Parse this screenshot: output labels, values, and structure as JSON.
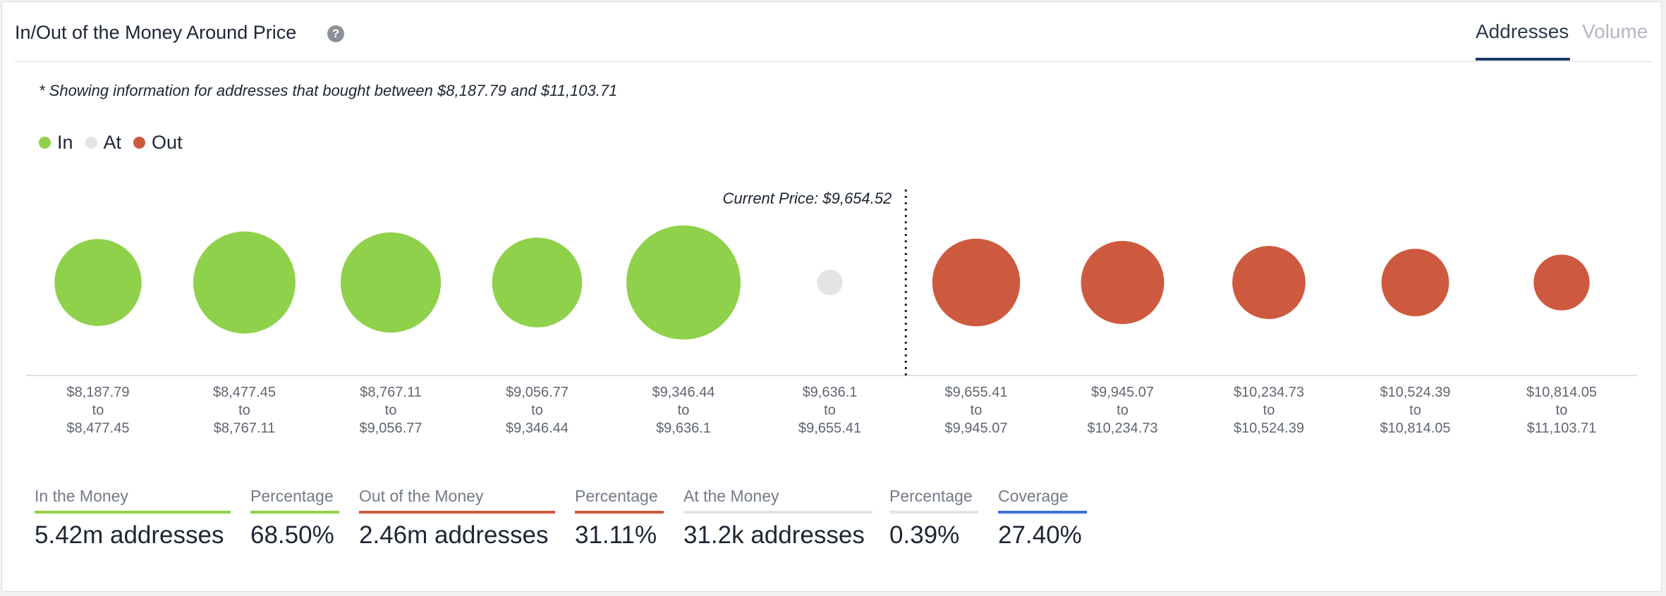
{
  "header": {
    "title": "In/Out of the Money Around Price",
    "help_icon": "question-circle-icon",
    "tabs": [
      {
        "label": "Addresses",
        "active": true
      },
      {
        "label": "Volume",
        "active": false
      }
    ]
  },
  "note": "* Showing information for addresses that bought between $8,187.79 and $11,103.71",
  "colors": {
    "in": "#8fd14a",
    "at": "#e4e4e4",
    "out": "#cd5a3f",
    "coverage": "#3f6fd8"
  },
  "legend": [
    {
      "label": "In",
      "color": "#8fd14a"
    },
    {
      "label": "At",
      "color": "#e4e4e4"
    },
    {
      "label": "Out",
      "color": "#cd5a3f"
    }
  ],
  "chart_data": {
    "type": "scatter",
    "encoding": "bubble area proportional to number of addresses in each price range",
    "current_price_label": "Current Price: $9,654.52",
    "current_price": 9654.52,
    "buckets": [
      {
        "from": "$8,187.79",
        "to": "$8,477.45",
        "status": "in",
        "relative_size": 0.58
      },
      {
        "from": "$8,477.45",
        "to": "$8,767.11",
        "status": "in",
        "relative_size": 0.8
      },
      {
        "from": "$8,767.11",
        "to": "$9,056.77",
        "status": "in",
        "relative_size": 0.77
      },
      {
        "from": "$9,056.77",
        "to": "$9,346.44",
        "status": "in",
        "relative_size": 0.62
      },
      {
        "from": "$9,346.44",
        "to": "$9,636.1",
        "status": "in",
        "relative_size": 1.0
      },
      {
        "from": "$9,636.1",
        "to": "$9,655.41",
        "status": "at",
        "relative_size": 0.05
      },
      {
        "from": "$9,655.41",
        "to": "$9,945.07",
        "status": "out",
        "relative_size": 0.59
      },
      {
        "from": "$9,945.07",
        "to": "$10,234.73",
        "status": "out",
        "relative_size": 0.53
      },
      {
        "from": "$10,234.73",
        "to": "$10,524.39",
        "status": "out",
        "relative_size": 0.41
      },
      {
        "from": "$10,524.39",
        "to": "$10,814.05",
        "status": "out",
        "relative_size": 0.35
      },
      {
        "from": "$10,814.05",
        "to": "$11,103.71",
        "status": "out",
        "relative_size": 0.24
      }
    ],
    "range_connector": "to"
  },
  "stats": [
    {
      "label": "In the Money",
      "value": "5.42m addresses",
      "color": "#8fd14a"
    },
    {
      "label": "Percentage",
      "value": "68.50%",
      "color": "#8fd14a"
    },
    {
      "label": "Out of the Money",
      "value": "2.46m addresses",
      "color": "#cd5a3f"
    },
    {
      "label": "Percentage",
      "value": "31.11%",
      "color": "#cd5a3f"
    },
    {
      "label": "At the Money",
      "value": "31.2k addresses",
      "color": "#e4e4e4"
    },
    {
      "label": "Percentage",
      "value": "0.39%",
      "color": "#e4e4e4"
    },
    {
      "label": "Coverage",
      "value": "27.40%",
      "color": "#3f6fd8"
    }
  ]
}
